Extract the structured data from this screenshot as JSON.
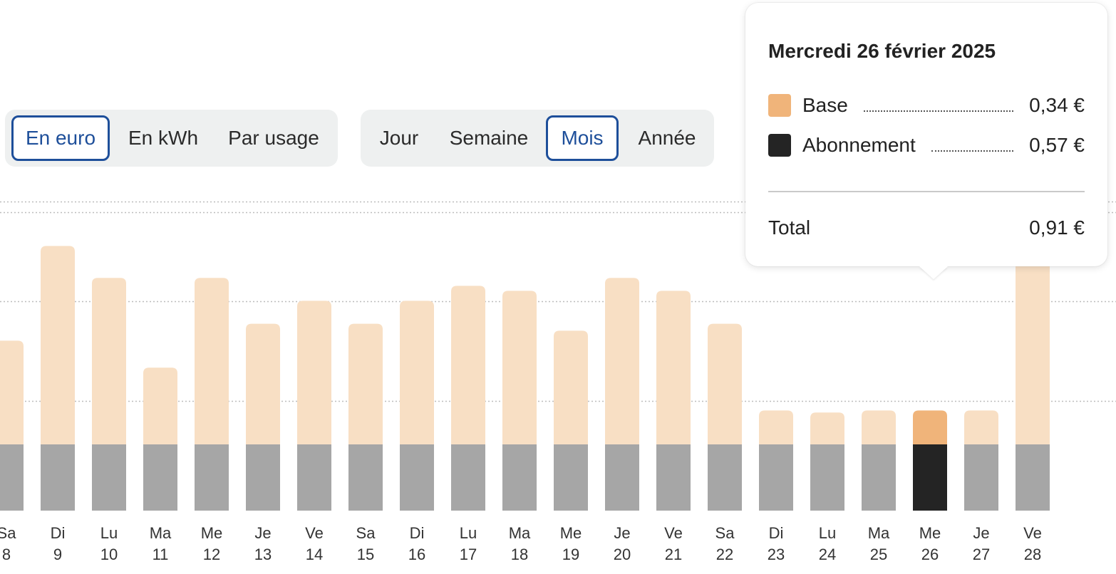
{
  "unit_toggle": {
    "options": [
      "En euro",
      "En kWh",
      "Par usage"
    ],
    "selected": "En euro"
  },
  "period_toggle": {
    "options": [
      "Jour",
      "Semaine",
      "Mois",
      "Année"
    ],
    "selected": "Mois"
  },
  "tooltip": {
    "title": "Mercredi 26 février 2025",
    "rows": [
      {
        "label": "Base",
        "value": "0,34 €",
        "color": "#f0b47a"
      },
      {
        "label": "Abonnement",
        "value": "0,57 €",
        "color": "#242424"
      }
    ],
    "total_label": "Total",
    "total_value": "0,91 €"
  },
  "chart_data": {
    "type": "bar",
    "stacked": true,
    "grid": true,
    "highlight_index": 18,
    "colors": {
      "base": "#f8dfc4",
      "base_highlight": "#f0b47a",
      "abonnement": "#a6a6a6",
      "abonnement_highlight": "#242424"
    },
    "categories": [
      {
        "day": "Sa",
        "num": "8"
      },
      {
        "day": "Di",
        "num": "9"
      },
      {
        "day": "Lu",
        "num": "10"
      },
      {
        "day": "Ma",
        "num": "11"
      },
      {
        "day": "Me",
        "num": "12"
      },
      {
        "day": "Je",
        "num": "13"
      },
      {
        "day": "Ve",
        "num": "14"
      },
      {
        "day": "Sa",
        "num": "15"
      },
      {
        "day": "Di",
        "num": "16"
      },
      {
        "day": "Lu",
        "num": "17"
      },
      {
        "day": "Ma",
        "num": "18"
      },
      {
        "day": "Me",
        "num": "19"
      },
      {
        "day": "Je",
        "num": "20"
      },
      {
        "day": "Ve",
        "num": "21"
      },
      {
        "day": "Sa",
        "num": "22"
      },
      {
        "day": "Di",
        "num": "23"
      },
      {
        "day": "Lu",
        "num": "24"
      },
      {
        "day": "Ma",
        "num": "25"
      },
      {
        "day": "Me",
        "num": "26"
      },
      {
        "day": "Je",
        "num": "27"
      },
      {
        "day": "Ve",
        "num": "28"
      }
    ],
    "series": [
      {
        "name": "Abonnement",
        "values": [
          0.57,
          0.57,
          0.57,
          0.57,
          0.57,
          0.57,
          0.57,
          0.57,
          0.57,
          0.57,
          0.57,
          0.57,
          0.57,
          0.57,
          0.57,
          0.57,
          0.57,
          0.57,
          0.57,
          0.57,
          0.57
        ]
      },
      {
        "name": "Base",
        "values": [
          1.04,
          1.99,
          1.67,
          0.77,
          1.67,
          1.21,
          1.44,
          1.21,
          1.44,
          1.59,
          1.54,
          1.14,
          1.67,
          1.54,
          1.21,
          0.34,
          0.32,
          0.34,
          0.34,
          0.34,
          2.1
        ]
      }
    ],
    "ylim": [
      0,
      3
    ]
  }
}
